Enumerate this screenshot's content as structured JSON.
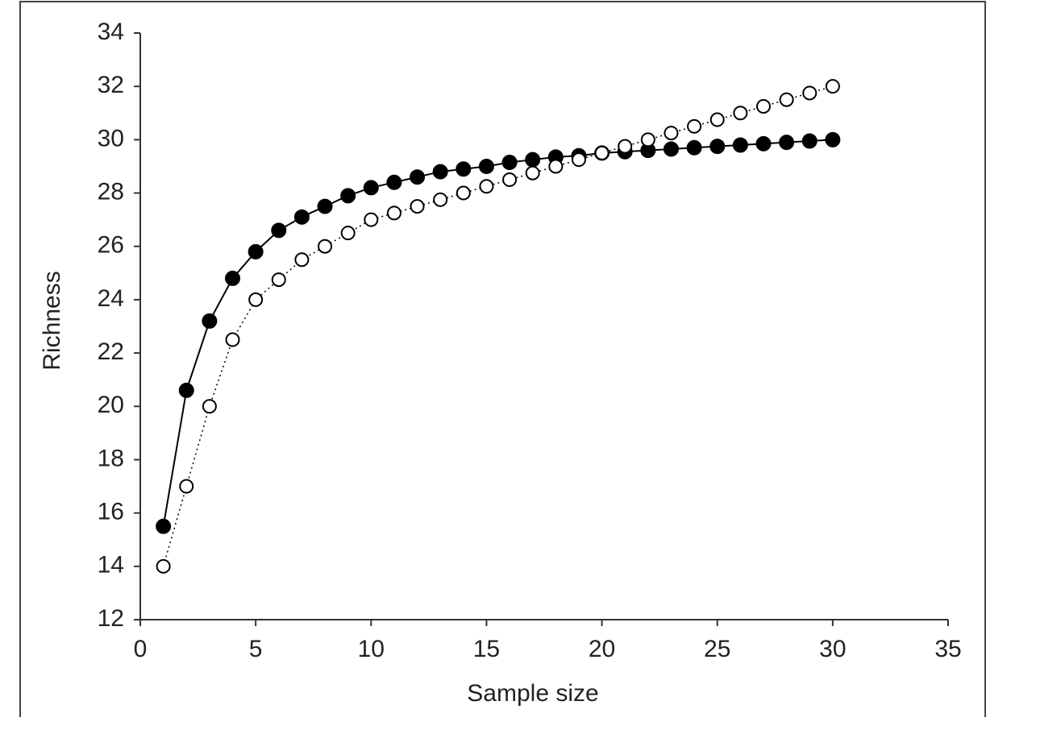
{
  "chart_data": {
    "type": "line",
    "xlabel": "Sample size",
    "ylabel": "Richness",
    "x": [
      1,
      2,
      3,
      4,
      5,
      6,
      7,
      8,
      9,
      10,
      11,
      12,
      13,
      14,
      15,
      16,
      17,
      18,
      19,
      20,
      21,
      22,
      23,
      24,
      25,
      26,
      27,
      28,
      29,
      30
    ],
    "series": [
      {
        "color": "#000000",
        "marker": "filled",
        "line_style": "solid",
        "values": [
          15.5,
          20.6,
          23.2,
          24.8,
          25.8,
          26.6,
          27.1,
          27.5,
          27.9,
          28.2,
          28.4,
          28.6,
          28.8,
          28.9,
          29.0,
          29.15,
          29.25,
          29.35,
          29.4,
          29.5,
          29.55,
          29.6,
          29.65,
          29.7,
          29.75,
          29.8,
          29.85,
          29.9,
          29.95,
          30.0
        ]
      },
      {
        "color": "#000000",
        "marker": "open",
        "line_style": "dotted",
        "values": [
          14,
          17,
          20,
          22.5,
          24,
          24.75,
          25.5,
          26,
          26.5,
          27,
          27.25,
          27.5,
          27.75,
          28,
          28.25,
          28.5,
          28.75,
          29,
          29.25,
          29.5,
          29.75,
          30,
          30.25,
          30.5,
          30.75,
          31,
          31.25,
          31.5,
          31.75,
          32
        ]
      }
    ],
    "xlim": [
      0,
      35
    ],
    "xticks": [
      0,
      5,
      10,
      15,
      20,
      25,
      30,
      35
    ],
    "ylim": [
      12,
      34
    ],
    "yticks": [
      12,
      14,
      16,
      18,
      20,
      22,
      24,
      26,
      28,
      30,
      32,
      34
    ]
  }
}
